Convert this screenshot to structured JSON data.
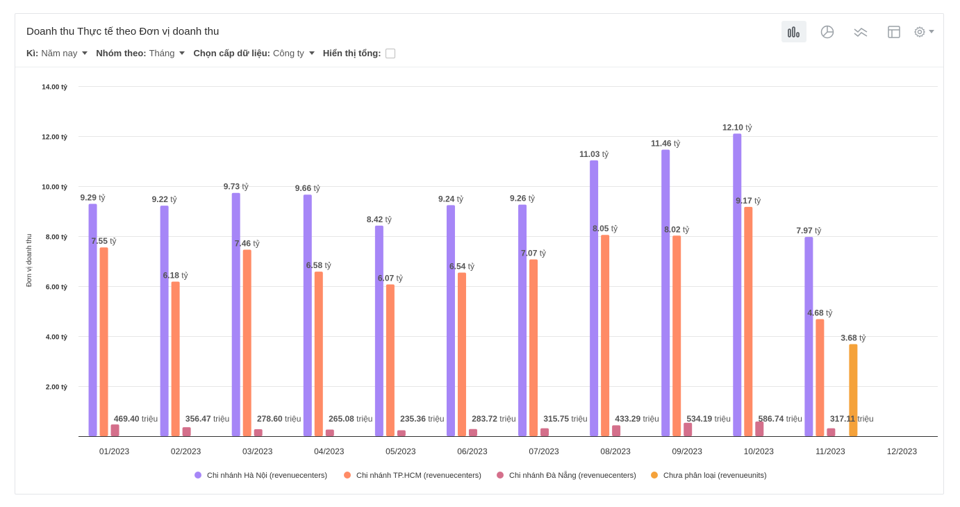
{
  "header": {
    "title": "Doanh thu Thực tế theo Đơn vị doanh thu",
    "filters": [
      {
        "label": "Kì:",
        "value": "Năm nay"
      },
      {
        "label": "Nhóm theo:",
        "value": "Tháng"
      },
      {
        "label": "Chọn cấp dữ liệu:",
        "value": "Công ty"
      }
    ],
    "total_label": "Hiển thị tổng:"
  },
  "toolbar": {
    "icons": [
      "bar-chart-icon",
      "pie-chart-icon",
      "line-chart-icon",
      "table-icon",
      "gear-icon"
    ],
    "colors": {
      "icon": "#9aa0a6",
      "active_bg": "#eef1f3"
    }
  },
  "chart_data": {
    "type": "bar",
    "title": "Doanh thu Thực tế theo Đơn vị doanh thu",
    "xlabel": "",
    "ylabel": "Đơn vị doanh thu",
    "ylim": [
      0,
      14
    ],
    "yticks": [
      2,
      4,
      6,
      8,
      10,
      12,
      14
    ],
    "ytick_labels": [
      "2.00 tỷ",
      "4.00 tỷ",
      "6.00 tỷ",
      "8.00 tỷ",
      "10.00 tỷ",
      "12.00 tỷ",
      "14.00 tỷ"
    ],
    "unit": "tỷ",
    "categories": [
      "01/2023",
      "02/2023",
      "03/2023",
      "04/2023",
      "05/2023",
      "06/2023",
      "07/2023",
      "08/2023",
      "09/2023",
      "10/2023",
      "11/2023",
      "12/2023"
    ],
    "series": [
      {
        "name": "Chi nhánh Hà Nội (revenuecenters)",
        "color": "#a686f7",
        "values": [
          9.29,
          9.22,
          9.73,
          9.66,
          8.42,
          9.24,
          9.26,
          11.03,
          11.46,
          12.1,
          7.97,
          null
        ],
        "labels": [
          [
            "9.29",
            " tỷ"
          ],
          [
            "9.22",
            " tỷ"
          ],
          [
            "9.73",
            " tỷ"
          ],
          [
            "9.66",
            " tỷ"
          ],
          [
            "8.42",
            " tỷ"
          ],
          [
            "9.24",
            " tỷ"
          ],
          [
            "9.26",
            " tỷ"
          ],
          [
            "11.03",
            " tỷ"
          ],
          [
            "11.46",
            " tỷ"
          ],
          [
            "12.10",
            " tỷ"
          ],
          [
            "7.97",
            " tỷ"
          ],
          null
        ]
      },
      {
        "name": "Chi nhánh TP.HCM (revenuecenters)",
        "color": "#ff8b66",
        "values": [
          7.55,
          6.18,
          7.46,
          6.58,
          6.07,
          6.54,
          7.07,
          8.05,
          8.02,
          9.17,
          4.68,
          null
        ],
        "labels": [
          [
            "7.55",
            " tỷ"
          ],
          [
            "6.18",
            " tỷ"
          ],
          [
            "7.46",
            " tỷ"
          ],
          [
            "6.58",
            " tỷ"
          ],
          [
            "6.07",
            " tỷ"
          ],
          [
            "6.54",
            " tỷ"
          ],
          [
            "7.07",
            " tỷ"
          ],
          [
            "8.05",
            " tỷ"
          ],
          [
            "8.02",
            " tỷ"
          ],
          [
            "9.17",
            " tỷ"
          ],
          [
            "4.68",
            " tỷ"
          ],
          null
        ]
      },
      {
        "name": "Chi nhánh Đà Nẵng (revenuecenters)",
        "color": "#d46f8b",
        "values": [
          0.4694,
          0.35647,
          0.2786,
          0.26508,
          0.23536,
          0.28372,
          0.31575,
          0.43329,
          0.53419,
          0.58674,
          0.31711,
          null
        ],
        "labels": [
          [
            "469.40",
            " triệu"
          ],
          [
            "356.47",
            " triệu"
          ],
          [
            "278.60",
            " triệu"
          ],
          [
            "265.08",
            " triệu"
          ],
          [
            "235.36",
            " triệu"
          ],
          [
            "283.72",
            " triệu"
          ],
          [
            "315.75",
            " triệu"
          ],
          [
            "433.29",
            " triệu"
          ],
          [
            "534.19",
            " triệu"
          ],
          [
            "586.74",
            " triệu"
          ],
          [
            "317.11",
            " triệu"
          ],
          null
        ]
      },
      {
        "name": "Chưa phân loại (revenueunits)",
        "color": "#f5a23a",
        "values": [
          null,
          null,
          null,
          null,
          null,
          null,
          null,
          null,
          null,
          null,
          3.68,
          null
        ],
        "labels": [
          null,
          null,
          null,
          null,
          null,
          null,
          null,
          null,
          null,
          null,
          [
            "3.68",
            " tỷ"
          ],
          null
        ]
      }
    ],
    "legend_position": "bottom",
    "grid": true
  }
}
